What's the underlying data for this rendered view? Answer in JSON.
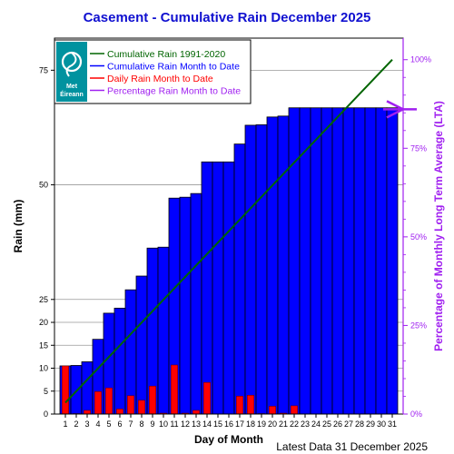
{
  "title": "Casement - Cumulative Rain December   2025",
  "footer": "Latest Data 31 December 2025",
  "logo": {
    "line1": "Met",
    "line2": "Éireann"
  },
  "colors": {
    "cumulative_bar": "#0000ff",
    "daily_bar": "#ff0000",
    "lta_line": "#006400",
    "percentage": "#a020f0",
    "title": "#1010d0"
  },
  "chart_data": {
    "type": "bar",
    "xlabel": "Day of Month",
    "ylabel": "Rain (mm)",
    "y2label": "Percentage  of Monthly Long Term Average (LTA)",
    "ylim": [
      0,
      82
    ],
    "y2lim": [
      0,
      100
    ],
    "y_ticks": [
      0,
      5,
      10,
      15,
      20,
      25,
      50,
      75
    ],
    "y2_ticks": [
      "0%",
      "25%",
      "50%",
      "75%",
      "100%"
    ],
    "grid": true,
    "legend_position": "top-left",
    "legend": [
      {
        "label": "Cumulative Rain 1991-2020",
        "color": "#006400"
      },
      {
        "label": "Cumulative Rain Month to Date",
        "color": "#0000ff"
      },
      {
        "label": "Daily Rain Month to Date",
        "color": "#ff0000"
      },
      {
        "label": "Percentage Rain Month to Date",
        "color": "#a020f0"
      }
    ],
    "days": [
      1,
      2,
      3,
      4,
      5,
      6,
      7,
      8,
      9,
      10,
      11,
      12,
      13,
      14,
      15,
      16,
      17,
      18,
      19,
      20,
      21,
      22,
      23,
      24,
      25,
      26,
      27,
      28,
      29,
      30,
      31
    ],
    "series": [
      {
        "name": "Cumulative Rain Month to Date",
        "values": [
          10.5,
          10.6,
          11.4,
          16.3,
          22.0,
          23.1,
          27.1,
          30.1,
          36.2,
          36.4,
          47.1,
          47.3,
          48.1,
          55.0,
          55.0,
          55.0,
          58.9,
          63.0,
          63.1,
          64.8,
          65.0,
          66.8,
          66.8,
          66.8,
          66.8,
          66.8,
          66.8,
          66.8,
          66.8,
          66.8,
          66.8
        ]
      },
      {
        "name": "Daily Rain Month to Date",
        "values": [
          10.5,
          0.1,
          0.8,
          4.9,
          5.7,
          1.1,
          4.0,
          3.0,
          6.1,
          0.2,
          10.7,
          0.2,
          0.8,
          6.9,
          0.0,
          0.0,
          3.9,
          4.1,
          0.1,
          1.7,
          0.2,
          1.8,
          0,
          0,
          0,
          0,
          0,
          0,
          0,
          0,
          0
        ]
      },
      {
        "name": "Cumulative Rain 1991-2020",
        "values": [
          2.5,
          77.3
        ]
      }
    ],
    "percentage_to_date": "86%"
  }
}
